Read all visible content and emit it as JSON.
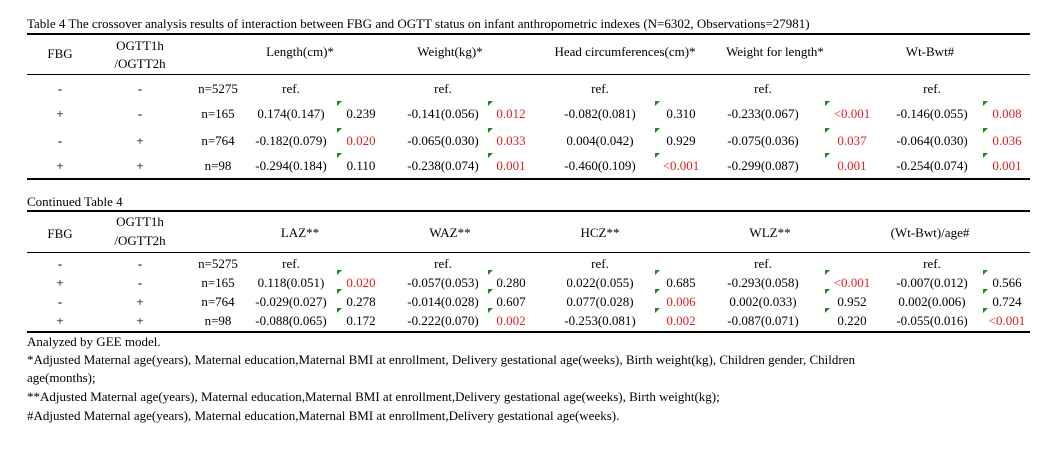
{
  "table1": {
    "title": "Table 4 The crossover analysis results of interaction between  FBG and OGTT status on infant anthropometric indexes (N=6302, Observations=27981)",
    "headers": {
      "fbg": "FBG",
      "ogtt_line1": "OGTT1h",
      "ogtt_line2": "/OGTT2h",
      "col1": "Length(cm)*",
      "col2": "Weight(kg)*",
      "col3": "Head circumferences(cm)*",
      "col4": "Weight for length*",
      "col5": "Wt-Bwt#"
    },
    "rows": [
      {
        "fbg": "-",
        "ogtt": "-",
        "n": "n=5275",
        "c1": "ref.",
        "p1": "",
        "c2": "ref.",
        "p2": "",
        "c3": "ref.",
        "p3": "",
        "c4": "ref.",
        "p4": "",
        "c5": "ref.",
        "p5": ""
      },
      {
        "fbg": "+",
        "ogtt": "-",
        "n": "n=165",
        "c1": "0.174(0.147)",
        "p1": "0.239",
        "c2": "-0.141(0.056)",
        "p2": "0.012",
        "c3": "-0.082(0.081)",
        "p3": "0.310",
        "c4": "-0.233(0.067)",
        "p4": "<0.001",
        "c5": "-0.146(0.055)",
        "p5": "0.008"
      },
      {
        "fbg": "-",
        "ogtt": "+",
        "n": "n=764",
        "c1": "-0.182(0.079)",
        "p1": "0.020",
        "c2": "-0.065(0.030)",
        "p2": "0.033",
        "c3": "0.004(0.042)",
        "p3": "0.929",
        "c4": "-0.075(0.036)",
        "p4": "0.037",
        "c5": "-0.064(0.030)",
        "p5": "0.036"
      },
      {
        "fbg": "+",
        "ogtt": "+",
        "n": "n=98",
        "c1": "-0.294(0.184)",
        "p1": "0.110",
        "c2": "-0.238(0.074)",
        "p2": "0.001",
        "c3": "-0.460(0.109)",
        "p3": "<0.001",
        "c4": "-0.299(0.087)",
        "p4": "0.001",
        "c5": "-0.254(0.074)",
        "p5": "0.001"
      }
    ]
  },
  "table2": {
    "title": "Continued  Table 4",
    "headers": {
      "fbg": "FBG",
      "ogtt_line1": "OGTT1h",
      "ogtt_line2": "/OGTT2h",
      "col1": "LAZ**",
      "col2": "WAZ**",
      "col3": "HCZ**",
      "col4": "WLZ**",
      "col5": "(Wt-Bwt)/age#"
    },
    "rows": [
      {
        "fbg": "-",
        "ogtt": "-",
        "n": "n=5275",
        "c1": "ref.",
        "p1": "",
        "c2": "ref.",
        "p2": "",
        "c3": "ref.",
        "p3": "",
        "c4": "ref.",
        "p4": "",
        "c5": "ref.",
        "p5": ""
      },
      {
        "fbg": "+",
        "ogtt": "-",
        "n": "n=165",
        "c1": "0.118(0.051)",
        "p1": "0.020",
        "c2": "-0.057(0.053)",
        "p2": "0.280",
        "c3": "0.022(0.055)",
        "p3": "0.685",
        "c4": "-0.293(0.058)",
        "p4": "<0.001",
        "c5": "-0.007(0.012)",
        "p5": "0.566"
      },
      {
        "fbg": "-",
        "ogtt": "+",
        "n": "n=764",
        "c1": "-0.029(0.027)",
        "p1": "0.278",
        "c2": "-0.014(0.028)",
        "p2": "0.607",
        "c3": "0.077(0.028)",
        "p3": "0.006",
        "c4": "0.002(0.033)",
        "p4": "0.952",
        "c5": "0.002(0.006)",
        "p5": "0.724"
      },
      {
        "fbg": "+",
        "ogtt": "+",
        "n": "n=98",
        "c1": "-0.088(0.065)",
        "p1": "0.172",
        "c2": "-0.222(0.070)",
        "p2": "0.002",
        "c3": "-0.253(0.081)",
        "p3": "0.002",
        "c4": "-0.087(0.071)",
        "p4": "0.220",
        "c5": "-0.055(0.016)",
        "p5": "<0.001"
      }
    ]
  },
  "notes": {
    "line1": "Analyzed by GEE model.",
    "line2": "*Adjusted Maternal age(years), Maternal education,Maternal BMI at enrollment, Delivery gestational age(weeks), Birth weight(kg), Children gender, Children",
    "line3": "age(months);",
    "line4": "**Adjusted Maternal age(years), Maternal education,Maternal BMI at enrollment,Delivery gestational age(weeks), Birth weight(kg);",
    "line5": "#Adjusted Maternal age(years), Maternal education,Maternal BMI at enrollment,Delivery gestational age(weeks)."
  }
}
